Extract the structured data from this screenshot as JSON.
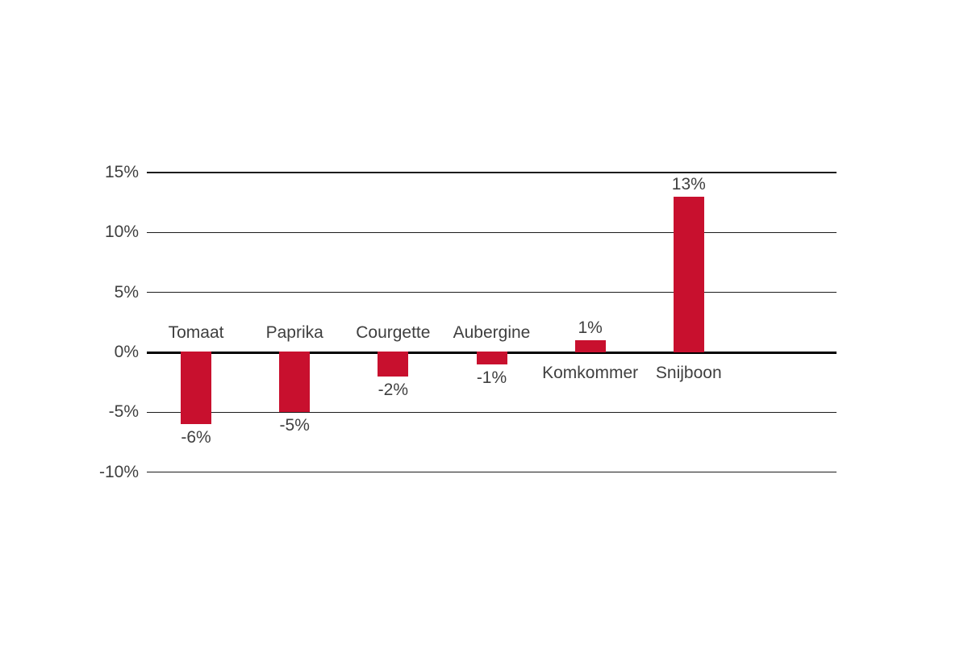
{
  "chart_data": {
    "type": "bar",
    "categories": [
      "Tomaat",
      "Paprika",
      "Courgette",
      "Aubergine",
      "Komkommer",
      "Snijboon"
    ],
    "values": [
      -6,
      -5,
      -2,
      -1,
      1,
      13
    ],
    "value_labels": [
      "-6%",
      "-5%",
      "-2%",
      "-1%",
      "1%",
      "13%"
    ],
    "y_ticks": [
      15,
      10,
      5,
      0,
      -5,
      -10
    ],
    "y_tick_labels": [
      "15%",
      "10%",
      "5%",
      "0%",
      "-5%",
      "-10%"
    ],
    "ylim": [
      -10,
      15
    ],
    "grid": true,
    "legend": "none",
    "colors": {
      "bar": "#c8102e",
      "gridline": "#1c1c1c",
      "zero_axis": "#000000",
      "label": "#3f3f3f",
      "background": "#ffffff"
    }
  }
}
